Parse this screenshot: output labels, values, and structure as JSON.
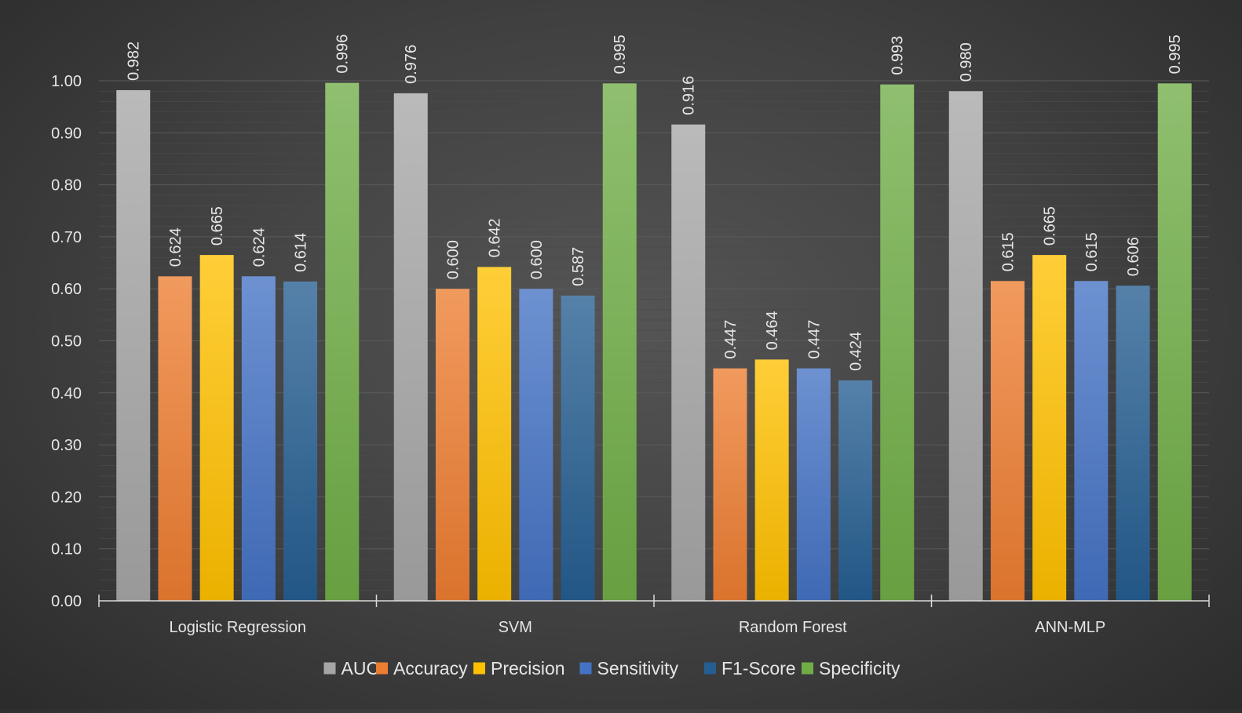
{
  "chart_data": {
    "type": "bar",
    "categories": [
      "Logistic Regression",
      "SVM",
      "Random Forest",
      "ANN-MLP"
    ],
    "series": [
      {
        "name": "AUC",
        "color": "#a6a6a6",
        "values": [
          0.982,
          0.976,
          0.916,
          0.98
        ]
      },
      {
        "name": "Accuracy",
        "color": "#ed7d31",
        "values": [
          0.624,
          0.6,
          0.447,
          0.615
        ]
      },
      {
        "name": "Precision",
        "color": "#ffc000",
        "values": [
          0.665,
          0.642,
          0.464,
          0.665
        ]
      },
      {
        "name": "Sensitivity",
        "color": "#4472c4",
        "values": [
          0.624,
          0.6,
          0.447,
          0.615
        ]
      },
      {
        "name": "F1-Score",
        "color": "#255e91",
        "values": [
          0.614,
          0.587,
          0.424,
          0.606
        ]
      },
      {
        "name": "Specificity",
        "color": "#70ad47",
        "values": [
          0.996,
          0.995,
          0.993,
          0.995
        ]
      }
    ],
    "data_labels": [
      [
        "0.982",
        "0.976",
        "0.916",
        "0.980"
      ],
      [
        "0.624",
        "0.600",
        "0.447",
        "0.615"
      ],
      [
        "0.665",
        "0.642",
        "0.464",
        "0.665"
      ],
      [
        "0.624",
        "0.600",
        "0.447",
        "0.615"
      ],
      [
        "0.614",
        "0.587",
        "0.424",
        "0.606"
      ],
      [
        "0.996",
        "0.995",
        "0.993",
        "0.995"
      ]
    ],
    "y_tick_labels": [
      "0.00",
      "0.10",
      "0.20",
      "0.30",
      "0.40",
      "0.50",
      "0.60",
      "0.70",
      "0.80",
      "0.90",
      "1.00"
    ],
    "ylim": [
      0,
      1
    ],
    "title": "",
    "xlabel": "",
    "ylabel": "",
    "grid": true,
    "legend_position": "bottom"
  },
  "colors": {
    "axis_text": "#e6e6e6",
    "gridline": "#5a5a5a",
    "axis_line": "#d9d9d9"
  }
}
